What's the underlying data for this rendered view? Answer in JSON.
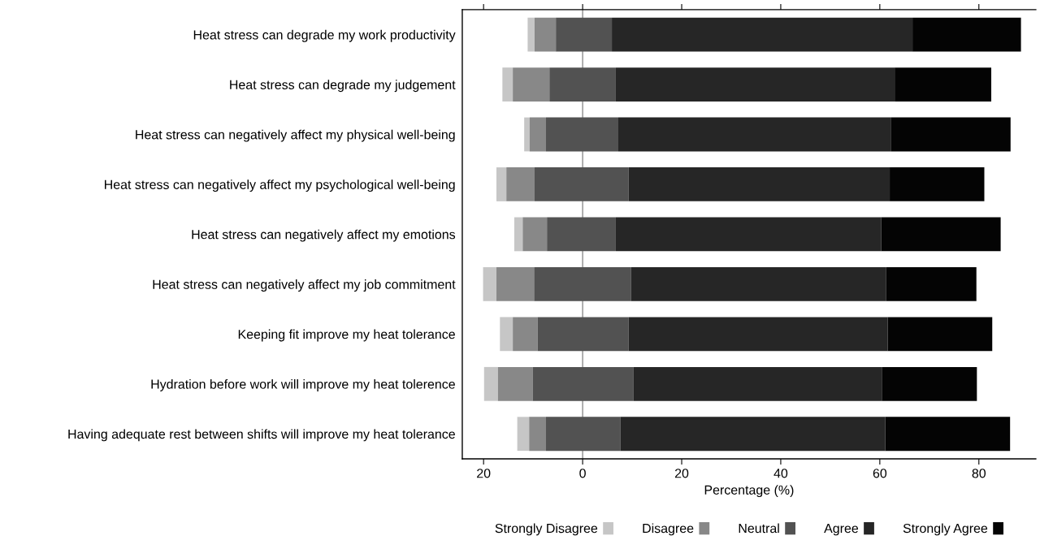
{
  "chart_data": {
    "type": "bar",
    "orientation": "horizontal",
    "xlabel": "Percentage (%)",
    "categories": [
      "Heat stress can degrade my work productivity",
      "Heat stress can degrade my judgement",
      "Heat stress can negatively affect my physical well-being",
      "Heat stress can negatively affect my psychological well-being",
      "Heat stress can negatively affect my emotions",
      "Heat stress can negatively affect my job commitment",
      "Keeping fit improve my heat tolerance",
      "Hydration before work will improve my heat tolerence",
      "Having adequate rest between shifts will improve my heat tolerance"
    ],
    "series": [
      {
        "name": "Strongly Disagree",
        "color": "#c6c6c6",
        "base": [
          -11.1,
          -16.2,
          -11.8,
          -17.4,
          -13.8,
          -20.1,
          -16.7,
          -19.9,
          -13.2
        ],
        "values": [
          1.4,
          2.1,
          1.1,
          2.0,
          1.7,
          2.7,
          2.6,
          2.8,
          2.4
        ]
      },
      {
        "name": "Disagree",
        "color": "#888888",
        "base": [
          -9.7,
          -14.1,
          -10.7,
          -15.4,
          -12.1,
          -17.4,
          -14.1,
          -17.1,
          -10.8
        ],
        "values": [
          4.3,
          7.4,
          3.3,
          5.7,
          4.9,
          7.6,
          5.0,
          7.0,
          3.4
        ]
      },
      {
        "name": "Neutral",
        "color": "#525252",
        "base": [
          -5.4,
          -6.7,
          -7.4,
          -9.7,
          -7.2,
          -9.8,
          -9.1,
          -10.1,
          -7.4
        ],
        "values": [
          11.3,
          13.4,
          14.6,
          19.0,
          13.9,
          19.6,
          18.4,
          20.4,
          15.0
        ]
      },
      {
        "name": "Agree",
        "color": "#262626",
        "base": [
          5.9,
          6.7,
          7.2,
          9.3,
          6.7,
          9.8,
          9.3,
          10.3,
          7.6
        ],
        "values": [
          60.7,
          56.3,
          55.1,
          52.7,
          53.6,
          51.5,
          52.3,
          50.1,
          53.5
        ]
      },
      {
        "name": "Strongly Agree",
        "color": "#040404",
        "base": [
          66.6,
          63.0,
          62.3,
          62.0,
          60.3,
          61.3,
          61.6,
          60.4,
          61.1
        ],
        "values": [
          21.9,
          19.5,
          24.1,
          19.1,
          24.1,
          18.2,
          21.1,
          19.2,
          25.2
        ]
      }
    ],
    "xlim": [
      -24.3,
      91.5
    ],
    "xticks": [
      {
        "value": -20,
        "label": "20"
      },
      0,
      20,
      40,
      60,
      80
    ],
    "ref_lines": [
      {
        "axis": "x",
        "value": 0,
        "color": "#8c8c8c"
      }
    ],
    "legend": "bottom"
  }
}
